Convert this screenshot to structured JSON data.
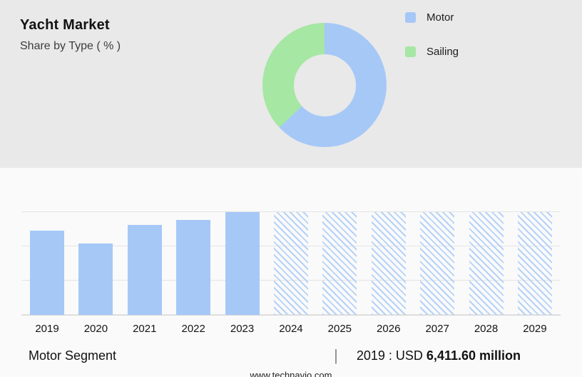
{
  "header": {
    "title": "Yacht Market",
    "subtitle": "Share by Type ( % )"
  },
  "legend": {
    "items": [
      {
        "label": "Motor",
        "color": "#a6c8f7"
      },
      {
        "label": "Sailing",
        "color": "#a5e7a3"
      }
    ]
  },
  "chart_data": [
    {
      "type": "pie",
      "title": "Yacht Market Share by Type ( % )",
      "labels": [
        "Motor",
        "Sailing"
      ],
      "values": [
        63,
        37
      ],
      "colors": [
        "#a6c8f7",
        "#a5e7a3"
      ],
      "donut": true,
      "legend_position": "right"
    },
    {
      "type": "bar",
      "title": "Motor Segment",
      "categories": [
        "2019",
        "2020",
        "2021",
        "2022",
        "2023",
        "2024",
        "2025",
        "2026",
        "2027",
        "2028",
        "2029"
      ],
      "values": [
        6411.6,
        5400,
        6800,
        7200,
        7800,
        7800,
        7800,
        7800,
        7800,
        7800,
        7800
      ],
      "unit": "USD million",
      "labeled_point": {
        "year": "2019",
        "text": "2019 : USD 6,411.60 million"
      },
      "forecast_from": "2024",
      "ylim": [
        0,
        7800
      ],
      "grid": true,
      "xlabel": "",
      "ylabel": ""
    }
  ],
  "footer": {
    "segment_label": "Motor Segment",
    "separator": "|",
    "value_prefix": "2019 : USD",
    "value_bold": "6,411.60 million",
    "website": "www.technavio.com"
  }
}
